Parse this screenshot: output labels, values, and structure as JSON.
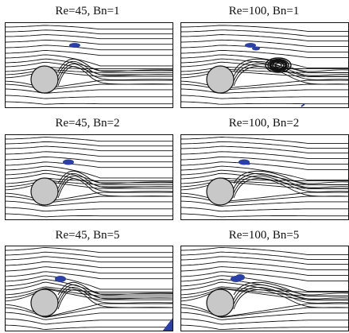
{
  "panels": [
    {
      "label": "Re=45, Bn=1",
      "re": 45,
      "bn": 1
    },
    {
      "label": "Re=100, Bn=1",
      "re": 100,
      "bn": 1
    },
    {
      "label": "Re=45, Bn=2",
      "re": 45,
      "bn": 2
    },
    {
      "label": "Re=100, Bn=2",
      "re": 100,
      "bn": 2
    },
    {
      "label": "Re=45, Bn=5",
      "re": 45,
      "bn": 5
    },
    {
      "label": "Re=100, Bn=5",
      "re": 100,
      "bn": 5
    }
  ],
  "colors": {
    "streamline": "#111111",
    "cylinder_fill": "#c8c8c8",
    "unyielded_region": "#2b3fa8"
  }
}
